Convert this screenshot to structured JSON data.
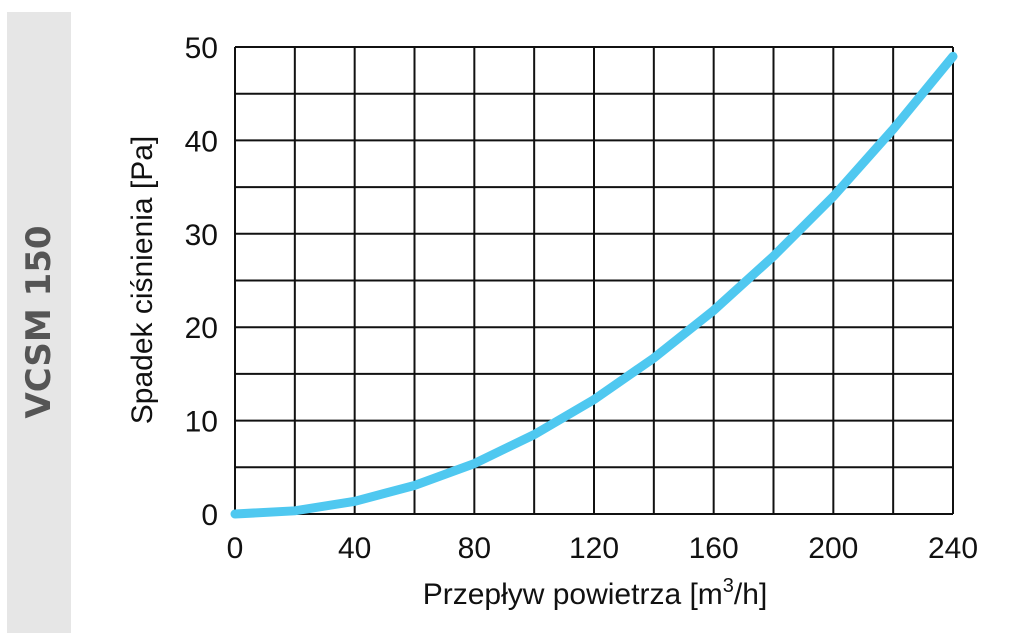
{
  "side_label": "VCSM 150",
  "chart_data": {
    "type": "line",
    "title": "",
    "xlabel": "Przepływ powietrza [m³/h]",
    "xlabel_main": "Przepływ powietrza [m",
    "xlabel_sup": "3",
    "xlabel_end": "/h]",
    "ylabel": "Spadek ciśnienia [Pa]",
    "xlim": [
      0,
      240
    ],
    "ylim": [
      0,
      50
    ],
    "x_ticks": [
      "0",
      "40",
      "80",
      "120",
      "160",
      "200",
      "240"
    ],
    "y_ticks": [
      "0",
      "10",
      "20",
      "30",
      "40",
      "50"
    ],
    "grid": true,
    "x_grid_step": 20,
    "y_grid_step": 5,
    "line_color": "#4fc8f0",
    "series": [
      {
        "x": [
          0,
          20,
          40,
          60,
          80,
          100,
          120,
          140,
          160,
          180,
          200,
          220,
          240
        ],
        "y": [
          0,
          0.34,
          1.36,
          3.06,
          5.4,
          8.5,
          12.25,
          16.7,
          21.8,
          27.6,
          34.0,
          41.2,
          49.0
        ]
      }
    ]
  }
}
